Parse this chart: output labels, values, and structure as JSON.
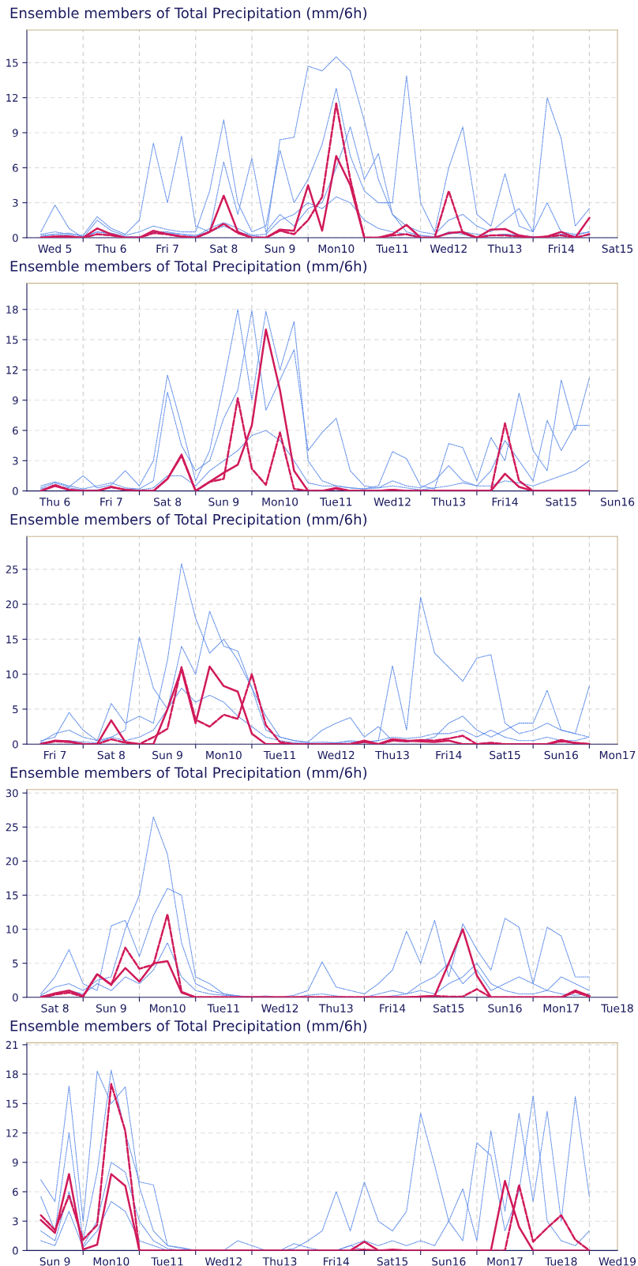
{
  "chart_data": [
    {
      "type": "line",
      "title": "Ensemble members of Total Precipitation (mm/6h)",
      "grid": true,
      "categories": [
        null,
        "Wed 5",
        null,
        null,
        null,
        "Thu 6",
        null,
        null,
        null,
        "Fri 7",
        null,
        null,
        null,
        "Sat 8",
        null,
        null,
        null,
        "Sun 9",
        null,
        null,
        null,
        "Mon10",
        null,
        null,
        null,
        "Tue11",
        null,
        null,
        null,
        "Wed12",
        null,
        null,
        null,
        "Thu13",
        null,
        null,
        null,
        "Fri14",
        null,
        null,
        null,
        "Sat15"
      ],
      "ylim": [
        0,
        17.8
      ],
      "yticks": [
        0,
        3,
        6,
        9,
        12,
        15
      ],
      "series": [
        {
          "color": "#5b8ae8",
          "line_style": "dotted",
          "values": [
            0.2,
            0.3,
            0.2,
            0,
            0.5,
            0.3,
            0,
            0,
            0.5,
            0.5,
            0.3,
            0.2,
            0.5,
            1,
            0.5,
            0.2,
            0,
            8.4,
            8.6,
            14.7,
            14.3,
            15.5,
            14.3,
            10,
            5,
            2,
            0.5,
            0.2,
            0,
            0.5,
            0.3,
            0,
            0.2,
            0.3,
            0.2,
            0,
            0.1,
            0.3,
            0.2,
            0.5,
            null,
            null
          ]
        },
        {
          "color": "#5b8ae8",
          "line_style": "dotted",
          "values": [
            0.5,
            2.8,
            0.8,
            0,
            1.5,
            0.6,
            0.2,
            0.5,
            1,
            0.7,
            0.5,
            0.5,
            4,
            10.1,
            3,
            0.5,
            1,
            7.5,
            3,
            5,
            8,
            12.8,
            7,
            4,
            3,
            3,
            13.9,
            3,
            0.5,
            6,
            9.5,
            2,
            1,
            5.5,
            1,
            0.5,
            3,
            0.5,
            0.3,
            0.5,
            null,
            null
          ]
        },
        {
          "color": "#5b8ae8",
          "line_style": "dotted",
          "values": [
            0.3,
            0.5,
            0.3,
            0.2,
            1.8,
            0.8,
            0.3,
            1.5,
            8.1,
            3,
            8.7,
            1,
            0.5,
            6.5,
            2,
            6.8,
            0.5,
            2,
            1,
            2.5,
            3,
            6,
            9.5,
            5,
            7.2,
            2,
            1,
            0.5,
            0.3,
            1.5,
            2,
            1,
            0.5,
            1.5,
            2.5,
            0.5,
            12,
            8.5,
            1,
            2.5,
            null,
            null
          ]
        },
        {
          "color": "#5b8ae8",
          "line_style": "dotted",
          "values": [
            0.1,
            0.3,
            0.4,
            0.1,
            0.5,
            0.4,
            0.1,
            0.1,
            0.4,
            0.4,
            0.3,
            0.1,
            0.8,
            1.3,
            0.8,
            0.2,
            0.3,
            1.5,
            2,
            3,
            2.5,
            3.5,
            3,
            1.5,
            0.8,
            0.5,
            0.3,
            0.2,
            0.1,
            0.3,
            0.5,
            0.3,
            0.2,
            0.3,
            0.2,
            0.1,
            0.1,
            0.3,
            0.1,
            0.2,
            null,
            null
          ]
        },
        {
          "color": "#d01a5a",
          "line_style": "dashed",
          "values": [
            0,
            0.1,
            0.1,
            0,
            0.3,
            0.2,
            0,
            0,
            0.4,
            0.3,
            0.1,
            0,
            0.5,
            1.2,
            0.4,
            0,
            0,
            0.6,
            0.3,
            1.5,
            3.5,
            11.5,
            5,
            0,
            0,
            0.2,
            0.3,
            0,
            0,
            4,
            0.4,
            0,
            0.2,
            0.2,
            0.1,
            0,
            0.1,
            0.2,
            0,
            0.3,
            null,
            null
          ]
        },
        {
          "color": "#d01a5a",
          "line_style": "solid",
          "values": [
            0,
            0.1,
            0.1,
            0,
            0.8,
            0.3,
            0,
            0,
            0.6,
            0.3,
            0.1,
            0,
            0.5,
            3.6,
            0.5,
            0,
            0,
            0.7,
            0.6,
            4.5,
            0.6,
            7,
            4.5,
            0,
            0,
            0.3,
            1.1,
            0,
            0,
            0.4,
            0.5,
            0,
            0.7,
            0.75,
            0.2,
            0,
            0.1,
            0.5,
            0,
            1.7,
            null,
            null
          ]
        }
      ]
    },
    {
      "type": "line",
      "title": "Ensemble members of Total Precipitation (mm/6h)",
      "grid": true,
      "categories": [
        null,
        "Thu 6",
        null,
        null,
        null,
        "Fri 7",
        null,
        null,
        null,
        "Sat 8",
        null,
        null,
        null,
        "Sun 9",
        null,
        null,
        null,
        "Mon10",
        null,
        null,
        null,
        "Tue11",
        null,
        null,
        null,
        "Wed12",
        null,
        null,
        null,
        "Thu13",
        null,
        null,
        null,
        "Fri14",
        null,
        null,
        null,
        "Sat15",
        null,
        null,
        null,
        "Sun16"
      ],
      "ylim": [
        0,
        20.6
      ],
      "yticks": [
        0,
        3,
        6,
        9,
        12,
        15,
        18
      ],
      "series": [
        {
          "color": "#5b8ae8",
          "line_style": "dotted",
          "values": [
            0.3,
            0.8,
            0.4,
            1.5,
            0.3,
            0.6,
            2,
            0.5,
            3,
            11.5,
            6.5,
            1,
            4,
            10.7,
            18,
            9,
            17.8,
            12,
            16.8,
            3,
            1,
            0.5,
            0.3,
            0.2,
            0.5,
            3.9,
            3.2,
            0.5,
            0.2,
            4.7,
            4.3,
            1,
            5.3,
            3,
            9.7,
            4,
            2,
            11,
            6,
            11.2,
            null,
            null
          ]
        },
        {
          "color": "#5b8ae8",
          "line_style": "dotted",
          "values": [
            0.5,
            0.9,
            0.5,
            0.2,
            0.5,
            0.8,
            0.3,
            0.2,
            1,
            9.8,
            4.5,
            2,
            3,
            7.2,
            10,
            17.9,
            8,
            11,
            14,
            4,
            5.8,
            7.2,
            2,
            0.5,
            0.3,
            1,
            0.5,
            0.3,
            1,
            2.5,
            1,
            0.5,
            2,
            5,
            3,
            1,
            7,
            4,
            6.5,
            6.5,
            null,
            null
          ]
        },
        {
          "color": "#5b8ae8",
          "line_style": "dotted",
          "values": [
            0.2,
            0.5,
            0.3,
            0.1,
            0.1,
            0.3,
            0.2,
            0.1,
            0.3,
            1.5,
            1.5,
            0.5,
            2,
            3,
            4,
            5.5,
            6,
            5,
            3,
            0.8,
            0.5,
            0.5,
            0.3,
            0.2,
            0.3,
            0.5,
            0.3,
            0.1,
            0.3,
            0.5,
            0.8,
            0.5,
            0.5,
            1,
            0.8,
            0.5,
            1,
            1.5,
            2,
            3,
            null,
            null
          ]
        },
        {
          "color": "#d01a5a",
          "line_style": "dashed",
          "values": [
            0,
            0.6,
            0.1,
            0,
            0,
            0.4,
            0.1,
            0,
            0,
            1.2,
            3.5,
            0,
            0.9,
            1.2,
            9.2,
            2.2,
            0.6,
            5.8,
            0.2,
            0,
            0,
            0.2,
            0,
            0,
            0,
            0.1,
            0,
            0,
            0,
            0,
            0,
            0,
            0,
            6.7,
            1,
            0,
            0,
            0,
            0,
            0,
            null,
            null
          ]
        },
        {
          "color": "#d01a5a",
          "line_style": "solid",
          "values": [
            0,
            0.5,
            0.1,
            0,
            0,
            0.4,
            0.1,
            0,
            0,
            1.2,
            3.6,
            0,
            0.9,
            1.8,
            2.6,
            6.5,
            16,
            10,
            2,
            0,
            0,
            0.3,
            0,
            0,
            0,
            0.1,
            0,
            0,
            0,
            0,
            0,
            0,
            0,
            1.7,
            0.4,
            0,
            0,
            0,
            0,
            0,
            null,
            null
          ]
        }
      ]
    },
    {
      "type": "line",
      "title": "Ensemble members of Total Precipitation (mm/6h)",
      "grid": true,
      "categories": [
        null,
        "Fri 7",
        null,
        null,
        null,
        "Sat 8",
        null,
        null,
        null,
        "Sun 9",
        null,
        null,
        null,
        "Mon10",
        null,
        null,
        null,
        "Tue11",
        null,
        null,
        null,
        "Wed12",
        null,
        null,
        null,
        "Thu13",
        null,
        null,
        null,
        "Fri14",
        null,
        null,
        null,
        "Sat15",
        null,
        null,
        null,
        "Sun16",
        null,
        null,
        null,
        "Mon17"
      ],
      "ylim": [
        0,
        29.7
      ],
      "yticks": [
        0,
        5,
        10,
        15,
        20,
        25
      ],
      "series": [
        {
          "color": "#5b8ae8",
          "line_style": "dotted",
          "values": [
            0.5,
            1,
            4.5,
            2,
            0.5,
            5.8,
            3,
            4,
            3,
            12,
            25.8,
            18,
            13,
            15,
            12,
            8,
            2,
            1,
            0.5,
            0.3,
            2,
            3,
            3.8,
            1,
            2.5,
            0.5,
            0.3,
            0.5,
            1,
            3,
            4,
            2,
            1,
            2,
            3,
            3,
            7.7,
            2,
            1.5,
            8.3,
            null,
            null
          ]
        },
        {
          "color": "#5b8ae8",
          "line_style": "dotted",
          "values": [
            0.3,
            1.5,
            2,
            1,
            0.5,
            1,
            2,
            15.3,
            8,
            5,
            14,
            10,
            19,
            14,
            13.3,
            8,
            4,
            1,
            0.5,
            0.2,
            0.3,
            0.2,
            0.5,
            0.3,
            0.5,
            11.2,
            2,
            21,
            13,
            11,
            9,
            12.3,
            12.8,
            3,
            1.5,
            2,
            3,
            2,
            1.5,
            1,
            null,
            null
          ]
        },
        {
          "color": "#5b8ae8",
          "line_style": "dotted",
          "values": [
            0.2,
            0.5,
            0.5,
            0.3,
            0.2,
            1,
            0.5,
            1,
            2,
            5,
            8,
            6,
            7,
            6,
            4,
            2.5,
            1,
            0.5,
            0.2,
            0.1,
            0.1,
            0.2,
            0.3,
            0.2,
            0.5,
            1,
            0.8,
            1,
            1.5,
            1.5,
            2,
            1,
            2,
            1,
            0.5,
            0.5,
            1,
            0.5,
            0.5,
            1,
            null,
            null
          ]
        },
        {
          "color": "#d01a5a",
          "line_style": "dashed",
          "values": [
            0,
            0.4,
            0.3,
            0,
            0,
            0.7,
            0.2,
            0,
            1,
            2.2,
            11,
            3.5,
            2.5,
            4.2,
            3.6,
            10,
            2.7,
            0.3,
            0,
            0,
            0,
            0,
            0,
            0.3,
            0,
            0.5,
            0.4,
            0.6,
            0.5,
            0.8,
            1.2,
            0,
            0.2,
            0,
            0,
            0,
            0,
            0.4,
            0.2,
            0,
            null,
            null
          ]
        },
        {
          "color": "#d01a5a",
          "line_style": "solid",
          "values": [
            0,
            0.5,
            0.4,
            0,
            0,
            3.4,
            0.3,
            0,
            0,
            5,
            10.7,
            3,
            11.1,
            8.3,
            7.5,
            1.5,
            0,
            0,
            0,
            0,
            0,
            0,
            0,
            0.5,
            0,
            0.7,
            0.5,
            0.4,
            0.3,
            0.5,
            0,
            0,
            0,
            0,
            0,
            0,
            0,
            0.6,
            0.1,
            0,
            null,
            null
          ]
        }
      ]
    },
    {
      "type": "line",
      "title": "Ensemble members of Total Precipitation (mm/6h)",
      "grid": true,
      "categories": [
        null,
        "Sat 8",
        null,
        null,
        null,
        "Sun 9",
        null,
        null,
        null,
        "Mon10",
        null,
        null,
        null,
        "Tue11",
        null,
        null,
        null,
        "Wed12",
        null,
        null,
        null,
        "Thu13",
        null,
        null,
        null,
        "Fri14",
        null,
        null,
        null,
        "Sat15",
        null,
        null,
        null,
        "Sun16",
        null,
        null,
        null,
        "Mon17",
        null,
        null,
        null,
        "Tue18"
      ],
      "ylim": [
        0,
        30.5
      ],
      "yticks": [
        0,
        5,
        10,
        15,
        20,
        25,
        30
      ],
      "series": [
        {
          "color": "#5b8ae8",
          "line_style": "dotted",
          "values": [
            0.3,
            1.5,
            2,
            1,
            2.5,
            3,
            10,
            15,
            26.5,
            21,
            8,
            2,
            1,
            0.5,
            0.2,
            0,
            0,
            0,
            0,
            0,
            0,
            0,
            0,
            0,
            0,
            0.2,
            0.5,
            1,
            0.5,
            2,
            3,
            5,
            2,
            1,
            0.5,
            0.5,
            1,
            0.5,
            0.3,
            0.5,
            null,
            null
          ]
        },
        {
          "color": "#5b8ae8",
          "line_style": "dotted",
          "values": [
            0.5,
            3,
            7,
            2,
            1,
            10.5,
            11.3,
            6,
            12,
            16,
            15,
            3,
            2,
            0.5,
            0.2,
            0,
            0,
            0,
            0,
            0.3,
            0.5,
            0.2,
            0,
            0,
            0.5,
            1,
            0.5,
            2,
            3,
            5,
            2,
            4,
            1,
            2,
            3,
            2,
            1,
            3,
            2,
            1,
            null,
            null
          ]
        },
        {
          "color": "#5b8ae8",
          "line_style": "dotted",
          "values": [
            0.2,
            0.5,
            1,
            0.5,
            2,
            1,
            3,
            2,
            4,
            8,
            3,
            1,
            0.5,
            0.3,
            0.2,
            0.1,
            0.2,
            0,
            0.3,
            1,
            5.2,
            1.5,
            1,
            0.5,
            2,
            4,
            9.7,
            5,
            11.3,
            3,
            10.8,
            7,
            4,
            11.6,
            10.3,
            2,
            10.3,
            9,
            3,
            3,
            null,
            null
          ]
        },
        {
          "color": "#d01a5a",
          "line_style": "dashed",
          "values": [
            0,
            0.4,
            0.7,
            0.1,
            3.4,
            1.8,
            7.3,
            4.2,
            4.8,
            12.2,
            0.8,
            0,
            0,
            0,
            0,
            0,
            0,
            0,
            0,
            0,
            0,
            0,
            0,
            0,
            0,
            0,
            0,
            0.1,
            0.2,
            0.1,
            0.1,
            1.2,
            0,
            0,
            0,
            0,
            0,
            0,
            0.8,
            0.1,
            null,
            null
          ]
        },
        {
          "color": "#d01a5a",
          "line_style": "solid",
          "values": [
            0,
            0.6,
            1,
            0.2,
            3.4,
            1.9,
            4.3,
            2.3,
            5,
            5.3,
            0.7,
            0,
            0,
            0,
            0,
            0,
            0,
            0,
            0,
            0,
            0,
            0,
            0,
            0,
            0,
            0,
            0,
            0.1,
            0.2,
            5,
            10,
            3.2,
            0,
            0,
            0,
            0,
            0,
            0,
            1,
            0.2,
            null,
            null
          ]
        }
      ]
    },
    {
      "type": "line",
      "title": "Ensemble members of Total Precipitation (mm/6h)",
      "grid": true,
      "categories": [
        null,
        "Sun 9",
        null,
        null,
        null,
        "Mon10",
        null,
        null,
        null,
        "Tue11",
        null,
        null,
        null,
        "Wed12",
        null,
        null,
        null,
        "Thu13",
        null,
        null,
        null,
        "Fri14",
        null,
        null,
        null,
        "Sat15",
        null,
        null,
        null,
        "Sun16",
        null,
        null,
        null,
        "Mon17",
        null,
        null,
        null,
        "Tue18",
        null,
        null,
        null,
        "Wed19"
      ],
      "ylim": [
        0,
        21.2
      ],
      "yticks": [
        0,
        3,
        6,
        9,
        12,
        15,
        18,
        21
      ],
      "series": [
        {
          "color": "#5b8ae8",
          "line_style": "dotted",
          "values": [
            7.2,
            5,
            16.8,
            3,
            18.3,
            15,
            16.7,
            6.5,
            2,
            0.5,
            0.2,
            0,
            0,
            0,
            0,
            0,
            0,
            0,
            0,
            0,
            0,
            0,
            0,
            0,
            0,
            null,
            null,
            null,
            null,
            null,
            null,
            null,
            null,
            null,
            null,
            null,
            null,
            null,
            null,
            null,
            null,
            null
          ]
        },
        {
          "color": "#5b8ae8",
          "line_style": "dotted",
          "values": [
            5.5,
            2,
            12,
            1,
            8,
            18.4,
            12,
            7,
            6.7,
            0.5,
            0.3,
            0,
            0,
            0,
            1,
            0.5,
            0,
            0,
            0.7,
            0.3,
            0,
            0,
            0.5,
            0,
            0,
            null,
            null,
            null,
            null,
            null,
            null,
            null,
            null,
            null,
            null,
            null,
            null,
            null,
            null,
            null,
            null,
            null
          ]
        },
        {
          "color": "#5b8ae8",
          "line_style": "dotted",
          "values": [
            2,
            1,
            6,
            0.5,
            3,
            9,
            8,
            3,
            1,
            0.2,
            0,
            0,
            0,
            0,
            0,
            0,
            0,
            0,
            0.2,
            1,
            2,
            6,
            2,
            7,
            3,
            2,
            4,
            14,
            8.7,
            3,
            6.3,
            1,
            12.2,
            4,
            14,
            5,
            14.2,
            3,
            15.7,
            5.5,
            null,
            null
          ]
        },
        {
          "color": "#5b8ae8",
          "line_style": "dotted",
          "values": [
            1,
            0.5,
            4,
            0.3,
            2,
            5,
            4,
            1,
            0.5,
            0,
            0,
            0,
            0,
            0,
            0,
            0,
            0,
            0,
            0,
            0,
            0,
            0,
            0.5,
            1,
            0.5,
            1,
            0.5,
            1,
            0.5,
            3,
            1,
            11,
            9.7,
            2,
            6,
            15.8,
            3,
            1,
            0.5,
            2,
            null,
            null
          ]
        },
        {
          "color": "#d01a5a",
          "line_style": "dashed",
          "values": [
            3.6,
            2.1,
            5.6,
            1.1,
            2.6,
            17,
            12.2,
            0,
            0,
            0,
            0,
            0,
            0,
            0,
            0,
            0,
            0,
            0,
            0,
            0,
            0,
            0,
            0,
            0.1,
            0,
            0,
            0,
            0,
            0,
            0,
            0,
            0,
            0,
            0,
            6.7,
            0.9,
            2.3,
            3.6,
            1.1,
            0,
            null,
            null
          ]
        },
        {
          "color": "#d01a5a",
          "line_style": "solid",
          "values": [
            3.1,
            1.8,
            7.8,
            0.1,
            0.6,
            7.8,
            6.6,
            0,
            0,
            0,
            0,
            0,
            0,
            0,
            0,
            0,
            0,
            0,
            0,
            0,
            0,
            0,
            0,
            0.9,
            0,
            0.1,
            0,
            0,
            0,
            0,
            0,
            0,
            0,
            7.1,
            2.4,
            0,
            0,
            0,
            0,
            0,
            null,
            null
          ]
        }
      ]
    }
  ]
}
